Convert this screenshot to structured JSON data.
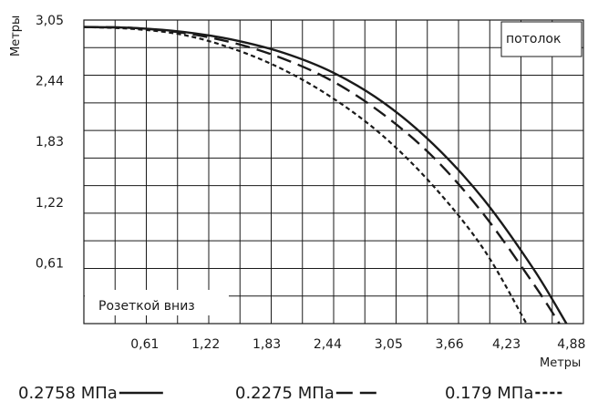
{
  "chart_data": {
    "type": "line",
    "ylabel": "Метры",
    "xlabel": "Метры",
    "x_ticks": [
      "0,61",
      "1,22",
      "1,83",
      "2,44",
      "3,05",
      "3,66",
      "4,23",
      "4,88"
    ],
    "y_ticks": [
      "0,61",
      "1,22",
      "1,83",
      "2,44",
      "3,05"
    ],
    "xlim": [
      0,
      5.0
    ],
    "ylim": [
      0,
      3.05
    ],
    "grid": true,
    "annotations": {
      "top_right": "потолок",
      "bottom_left": "Розеткой вниз"
    },
    "series": [
      {
        "name": "0.2758 МПа",
        "style": "solid",
        "color": "#1a1a1a",
        "x": [
          0,
          0.5,
          1.0,
          1.5,
          2.0,
          2.5,
          3.0,
          3.5,
          4.0,
          4.5,
          4.83
        ],
        "y": [
          2.98,
          2.97,
          2.93,
          2.85,
          2.72,
          2.52,
          2.22,
          1.8,
          1.25,
          0.55,
          0.0
        ]
      },
      {
        "name": "0.2275 МПа",
        "style": "dashed",
        "color": "#1a1a1a",
        "x": [
          0,
          0.5,
          1.0,
          1.5,
          2.0,
          2.5,
          3.0,
          3.5,
          4.0,
          4.5,
          4.76
        ],
        "y": [
          2.98,
          2.97,
          2.92,
          2.82,
          2.66,
          2.43,
          2.1,
          1.67,
          1.1,
          0.4,
          0.0
        ]
      },
      {
        "name": "0.179 МПа",
        "style": "dotted",
        "color": "#1a1a1a",
        "x": [
          0,
          0.5,
          1.0,
          1.5,
          2.0,
          2.5,
          3.0,
          3.5,
          4.0,
          4.43
        ],
        "y": [
          2.98,
          2.96,
          2.9,
          2.76,
          2.55,
          2.26,
          1.88,
          1.38,
          0.75,
          0.0
        ]
      }
    ]
  }
}
